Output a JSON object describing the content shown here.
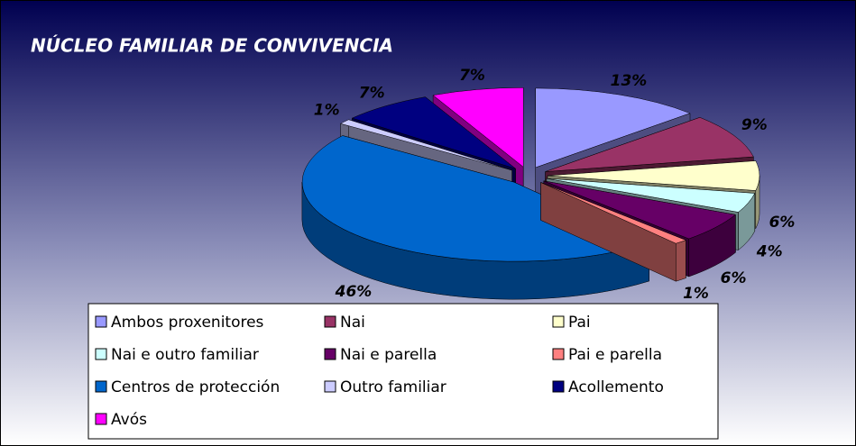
{
  "chart_data": {
    "type": "pie3d",
    "title": "NÚCLEO FAMILIAR DE CONVIVENCIA",
    "categories": [
      "Ambos proxenitores",
      "Nai",
      "Pai",
      "Nai e outro familiar",
      "Nai e parella",
      "Pai e parella",
      "Centros de protección",
      "Outro familiar",
      "Acollemento",
      "Avós"
    ],
    "values": [
      13,
      9,
      6,
      4,
      6,
      1,
      46,
      1,
      7,
      7
    ],
    "value_labels": [
      "13%",
      "9%",
      "6%",
      "4%",
      "6%",
      "1%",
      "46%",
      "1%",
      "7%",
      "7%"
    ],
    "colors": [
      "#9999ff",
      "#993366",
      "#ffffcc",
      "#ccffff",
      "#660066",
      "#ff8080",
      "#0066cc",
      "#ccccff",
      "#000080",
      "#ff00ff"
    ]
  }
}
